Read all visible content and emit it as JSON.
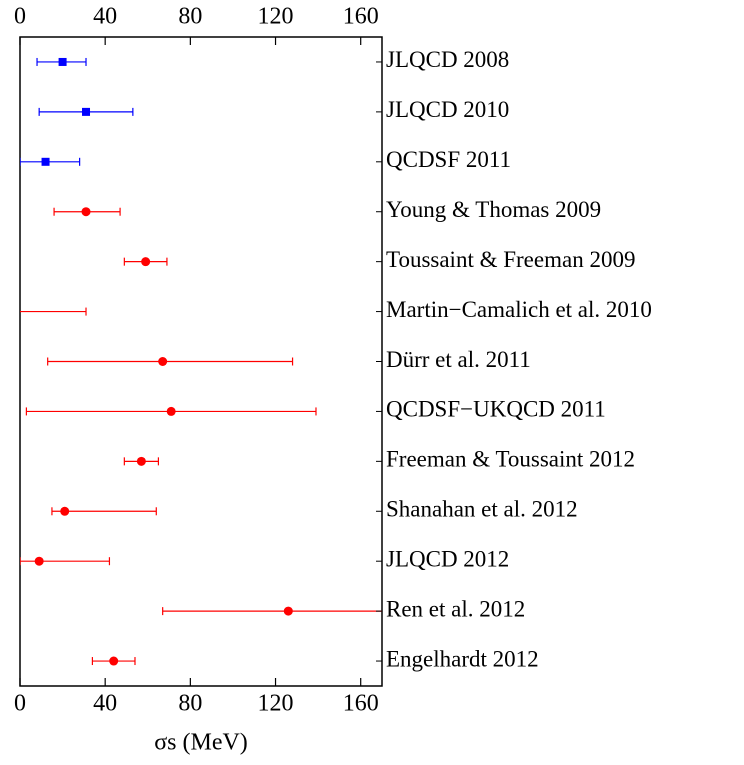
{
  "chart_data": {
    "type": "errorbar",
    "xlabel": "σs (MeV)",
    "xlim": [
      0,
      170
    ],
    "xticks": [
      0,
      40,
      80,
      120,
      160
    ],
    "categories": [
      "JLQCD 2008",
      "JLQCD 2010",
      "QCDSF 2011",
      "Young & Thomas 2009",
      "Toussaint & Freeman 2009",
      "Martin−Camalich et al. 2010",
      "Dürr et al. 2011",
      "QCDSF−UKQCD 2011",
      "Freeman & Toussaint 2012",
      "Shanahan et al. 2012",
      "JLQCD 2012",
      "Ren et al. 2012",
      "Engelhardt 2012"
    ],
    "series": [
      {
        "color": "#0000ff",
        "marker": "square",
        "values": [
          20,
          31,
          12,
          null,
          null,
          null,
          null,
          null,
          null,
          null,
          null,
          null,
          null
        ],
        "err_minus": [
          12,
          22,
          12,
          null,
          null,
          null,
          null,
          null,
          null,
          null,
          null,
          null,
          null
        ],
        "err_plus": [
          11,
          22,
          16,
          null,
          null,
          null,
          null,
          null,
          null,
          null,
          null,
          null,
          null
        ]
      },
      {
        "color": "#ff0000",
        "marker": "circle",
        "values": [
          null,
          null,
          null,
          31,
          59,
          -4,
          67,
          71,
          57,
          21,
          9,
          126,
          44
        ],
        "err_minus": [
          null,
          null,
          null,
          15,
          10,
          23,
          54,
          68,
          8,
          6,
          9,
          59,
          10
        ],
        "err_plus": [
          null,
          null,
          null,
          16,
          10,
          35,
          61,
          68,
          8,
          43,
          33,
          59,
          10
        ]
      }
    ]
  }
}
